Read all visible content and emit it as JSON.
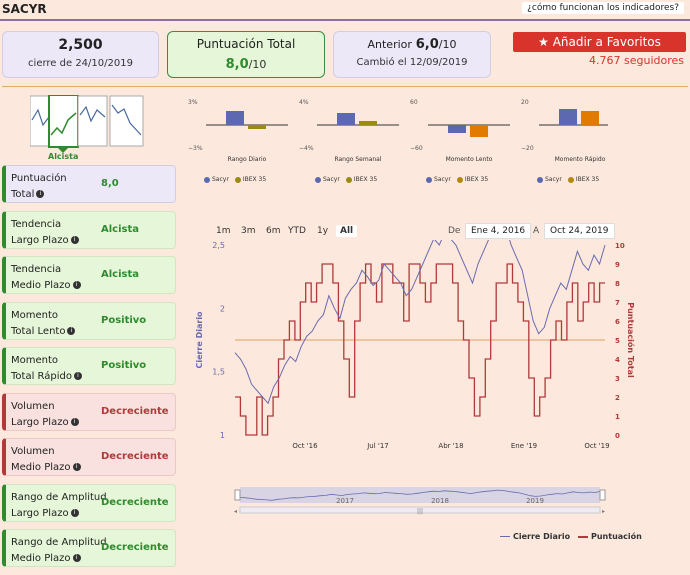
{
  "header": {
    "title": "SACYR",
    "help_link": "¿cómo funcionan los indicadores?"
  },
  "summary": {
    "price": "2,500",
    "price_date": "cierre de 24/10/2019",
    "score_label": "Puntuación Total",
    "score_value": "8,0",
    "score_denominator": "/10",
    "prev_label": "Anterior",
    "prev_value": "6,0",
    "prev_denominator": "/10",
    "prev_changed": "Cambió el 12/09/2019",
    "favorite_button": "Añadir a Favoritos",
    "followers": "4.767 seguidores"
  },
  "trend_badge": "Alcista",
  "mini_charts": [
    {
      "title": "Rango Diario",
      "top": "3%",
      "bottom": "−3%",
      "sacyr_color": "#5c68b0",
      "ibex_color": "#9a8a10"
    },
    {
      "title": "Rango Semanal",
      "top": "4%",
      "bottom": "−4%",
      "sacyr_color": "#5c68b0",
      "ibex_color": "#9a8a10"
    },
    {
      "title": "Momento Lento",
      "top": "60",
      "bottom": "−60",
      "sacyr_color": "#5c68b0",
      "ibex_color": "#e07b00"
    },
    {
      "title": "Momento Rápido",
      "top": "20",
      "bottom": "−20",
      "sacyr_color": "#5c68b0",
      "ibex_color": "#e07b00"
    }
  ],
  "mini_legend": {
    "sacyr": "Sacyr",
    "ibex": "IBEX 35"
  },
  "indicators": [
    {
      "line1": "Puntuación",
      "line2": "Total",
      "value": "8,0",
      "status": "purple"
    },
    {
      "line1": "Tendencia",
      "line2": "Largo Plazo",
      "value": "Alcista",
      "status": "green"
    },
    {
      "line1": "Tendencia",
      "line2": "Medio Plazo",
      "value": "Alcista",
      "status": "green"
    },
    {
      "line1": "Momento",
      "line2": "Total Lento",
      "value": "Positivo",
      "status": "green"
    },
    {
      "line1": "Momento",
      "line2": "Total Rápido",
      "value": "Positivo",
      "status": "green"
    },
    {
      "line1": "Volumen",
      "line2": "Largo Plazo",
      "value": "Decreciente",
      "status": "red"
    },
    {
      "line1": "Volumen",
      "line2": "Medio Plazo",
      "value": "Decreciente",
      "status": "red"
    },
    {
      "line1": "Rango de Amplitud",
      "line2": "Largo Plazo",
      "value": "Decreciente",
      "status": "green"
    },
    {
      "line1": "Rango de Amplitud",
      "line2": "Medio Plazo",
      "value": "Decreciente",
      "status": "green"
    }
  ],
  "range_buttons": [
    "1m",
    "3m",
    "6m",
    "YTD",
    "1y",
    "All"
  ],
  "date_from_label": "De",
  "date_from": "Ene 4, 2016",
  "date_to_label": "A",
  "date_to": "Oct 24, 2019",
  "legend": {
    "close": "Cierre Diario",
    "score": "Puntuación"
  },
  "navigator_years": [
    "2017",
    "2018",
    "2019"
  ],
  "chart_data": {
    "type": "line",
    "x_ticks": [
      "Oct '16",
      "Jul '17",
      "Abr '18",
      "Ene '19",
      "Oct '19"
    ],
    "ylabel_left": "Cierre Diario",
    "ylabel_right": "Puntuación Total",
    "ylim_left": [
      1,
      2.5
    ],
    "y_ticks_left": [
      "1",
      "1,5",
      "2",
      "2,5"
    ],
    "ylim_right": [
      0,
      10
    ],
    "y_ticks_right": [
      "0",
      "1",
      "2",
      "3",
      "4",
      "5",
      "6",
      "7",
      "8",
      "9",
      "10"
    ],
    "reference_line": 5,
    "series": [
      {
        "name": "Cierre Diario",
        "color": "#6a6ab0",
        "values": [
          1.65,
          1.6,
          1.52,
          1.4,
          1.35,
          1.3,
          1.25,
          1.38,
          1.45,
          1.55,
          1.62,
          1.58,
          1.7,
          1.78,
          1.82,
          1.9,
          1.95,
          2.1,
          2.0,
          1.92,
          2.08,
          2.15,
          2.2,
          2.3,
          2.25,
          2.18,
          2.22,
          2.35,
          2.3,
          2.25,
          2.2,
          2.1,
          2.15,
          2.25,
          2.35,
          2.45,
          2.55,
          2.5,
          2.6,
          2.55,
          2.5,
          2.4,
          2.3,
          2.2,
          2.35,
          2.45,
          2.55,
          2.6,
          2.7,
          2.65,
          2.5,
          2.4,
          2.3,
          2.1,
          1.9,
          1.8,
          1.85,
          2.0,
          2.1,
          2.2,
          2.15,
          2.3,
          2.45,
          2.35,
          2.3,
          2.42,
          2.35,
          2.5
        ]
      },
      {
        "name": "Puntuación",
        "color": "#b03a3a",
        "values": [
          2,
          1,
          0,
          0,
          2,
          0,
          1,
          2,
          4,
          5,
          6,
          5,
          7,
          8,
          7,
          8,
          9,
          9,
          8,
          6,
          4,
          2,
          6,
          8,
          9,
          8,
          7,
          9,
          9,
          8,
          8,
          6,
          9,
          9,
          8,
          7,
          8,
          9,
          9,
          9,
          8,
          6,
          5,
          3,
          1,
          2,
          4,
          6,
          8,
          8,
          9,
          8,
          7,
          6,
          3,
          1,
          2,
          3,
          5,
          6,
          5,
          7,
          8,
          6,
          7,
          8,
          7,
          8
        ]
      }
    ]
  }
}
